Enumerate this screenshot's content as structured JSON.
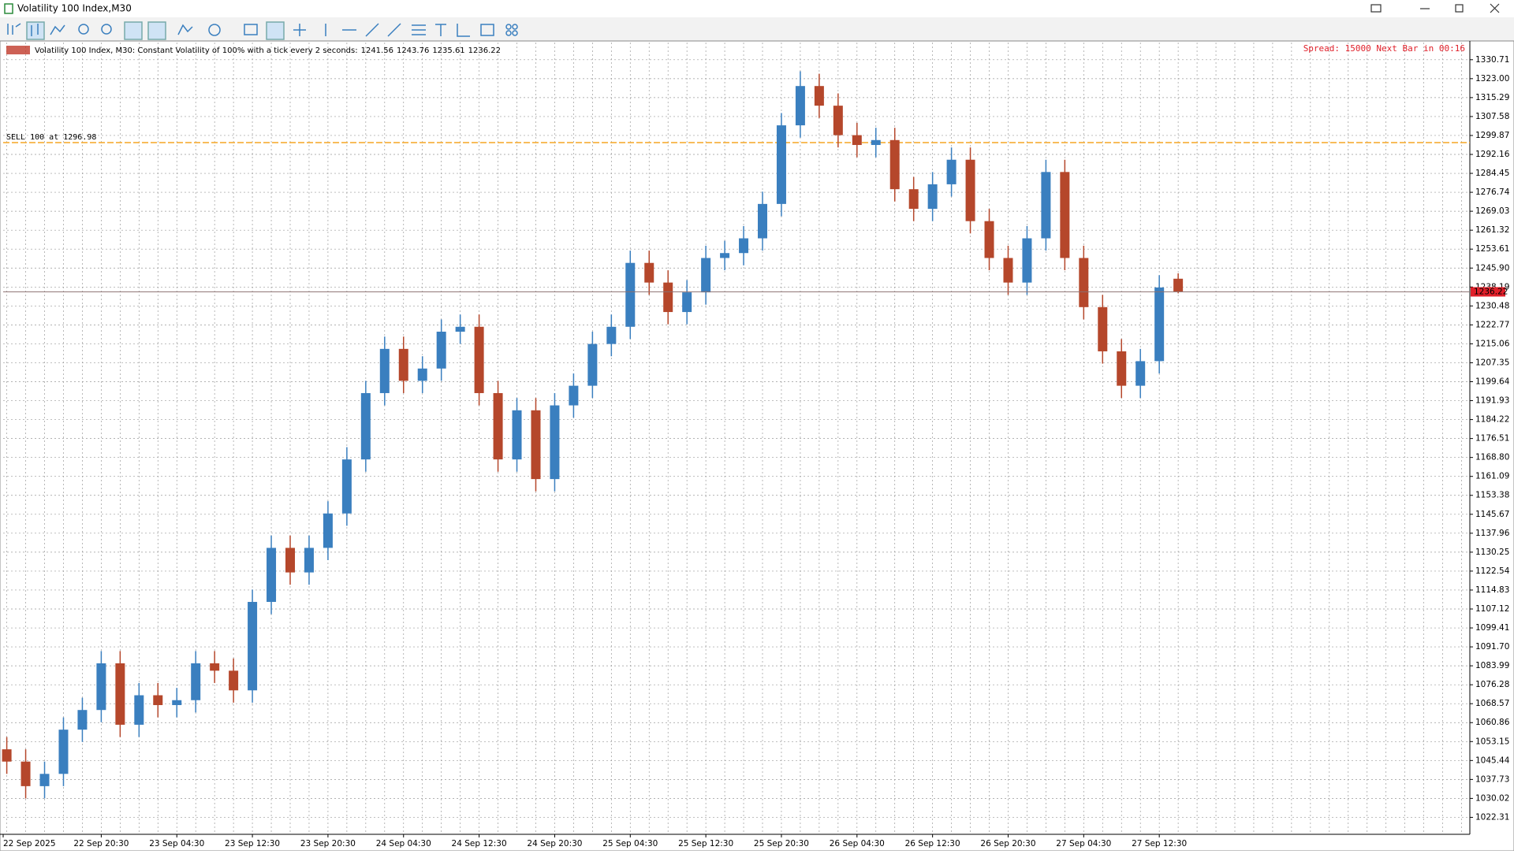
{
  "window": {
    "title": "Volatility 100 Index,M30"
  },
  "chart_data": {
    "type": "candlestick",
    "info": "Volatility 100 Index, M30:  Constant Volatility of 100% with a tick every 2 seconds:",
    "spread_text": "Spread: 15000 Next Bar in 00:16",
    "sell_line": {
      "label": "SELL 100 at 1296.98",
      "value": 1296.98,
      "color": "#f5a623"
    },
    "bull_color": "#3a7fbf",
    "bear_color": "#b5472b",
    "time_labels": [
      "22 Sep 2025",
      "22 Sep 20:30",
      "23 Sep 04:30",
      "23 Sep 12:30",
      "23 Sep 20:30",
      "24 Sep 04:30",
      "24 Sep 12:30",
      "24 Sep 20:30",
      "25 Sep 04:30",
      "25 Sep 12:30",
      "25 Sep 20:30",
      "26 Sep 04:30",
      "26 Sep 12:30",
      "26 Sep 20:30",
      "27 Sep 04:30",
      "27 Sep 12:30"
    ],
    "open": [
      1050,
      1045,
      1035,
      1040,
      1058,
      1066,
      1085,
      1060,
      1072,
      1068,
      1070,
      1085,
      1082,
      1074,
      1110,
      1132,
      1122,
      1132,
      1146,
      1168,
      1195,
      1213,
      1200,
      1205,
      1220,
      1222,
      1195,
      1168,
      1188,
      1160,
      1190,
      1198,
      1215,
      1222,
      1248,
      1240,
      1228,
      1236,
      1250,
      1252,
      1258,
      1272,
      1304,
      1320,
      1312,
      1300,
      1296,
      1298,
      1278,
      1270,
      1280,
      1290,
      1265,
      1250,
      1240,
      1258,
      1285,
      1250,
      1230,
      1212,
      1198,
      1208,
      1241.56
    ],
    "high": [
      1055,
      1050,
      1045,
      1063,
      1071,
      1090,
      1090,
      1077,
      1077,
      1075,
      1090,
      1090,
      1087,
      1115,
      1137,
      1137,
      1137,
      1151,
      1173,
      1200,
      1218,
      1218,
      1210,
      1225,
      1227,
      1227,
      1200,
      1193,
      1193,
      1195,
      1203,
      1220,
      1227,
      1253,
      1253,
      1245,
      1241,
      1255,
      1257,
      1263,
      1277,
      1309,
      1326,
      1325,
      1317,
      1305,
      1303,
      1303,
      1283,
      1285,
      1295,
      1295,
      1270,
      1255,
      1263,
      1290,
      1290,
      1255,
      1235,
      1217,
      1213,
      1243,
      1243.76
    ],
    "low": [
      1040,
      1030,
      1030,
      1035,
      1053,
      1061,
      1055,
      1055,
      1063,
      1063,
      1065,
      1077,
      1069,
      1069,
      1105,
      1117,
      1117,
      1127,
      1141,
      1163,
      1190,
      1195,
      1195,
      1200,
      1215,
      1190,
      1163,
      1163,
      1155,
      1155,
      1185,
      1193,
      1210,
      1217,
      1235,
      1223,
      1223,
      1231,
      1245,
      1247,
      1253,
      1267,
      1299,
      1307,
      1295,
      1291,
      1291,
      1273,
      1265,
      1265,
      1275,
      1260,
      1245,
      1235,
      1235,
      1253,
      1245,
      1225,
      1207,
      1193,
      1193,
      1203,
      1235.61
    ],
    "close": [
      1045,
      1035,
      1040,
      1058,
      1066,
      1085,
      1060,
      1072,
      1068,
      1070,
      1085,
      1082,
      1074,
      1110,
      1132,
      1122,
      1132,
      1146,
      1168,
      1195,
      1213,
      1200,
      1205,
      1220,
      1222,
      1195,
      1168,
      1188,
      1160,
      1190,
      1198,
      1215,
      1222,
      1248,
      1240,
      1228,
      1236,
      1250,
      1252,
      1258,
      1272,
      1304,
      1320,
      1312,
      1300,
      1296,
      1298,
      1278,
      1270,
      1280,
      1290,
      1265,
      1250,
      1240,
      1258,
      1285,
      1250,
      1230,
      1212,
      1198,
      1208,
      1238,
      1236.22
    ],
    "ylim": [
      1015.4,
      1337.7
    ],
    "yticks": [
      1330.71,
      {
        "value": 1323.0,
        "label": "1323.00"
      },
      1315.29,
      1307.58,
      1299.87,
      1292.16,
      1284.45,
      1276.74,
      1269.03,
      1261.32,
      1253.61,
      {
        "value": 1245.9,
        "label": "1245.90"
      },
      1238.19,
      1230.48,
      1222.77,
      1215.06,
      1207.35,
      1199.64,
      1191.93,
      1184.22,
      1176.51,
      {
        "value": 1168.8,
        "label": "1168.80"
      },
      1161.09,
      1153.38,
      1145.67,
      1137.96,
      1130.25,
      1122.54,
      1114.83,
      1107.12,
      1099.41,
      {
        "value": 1091.7,
        "label": "1091.70"
      },
      1083.99,
      1076.28,
      1068.57,
      1060.86,
      1053.15,
      1045.44,
      1037.73,
      1030.02,
      1022.31
    ],
    "grid": true
  }
}
